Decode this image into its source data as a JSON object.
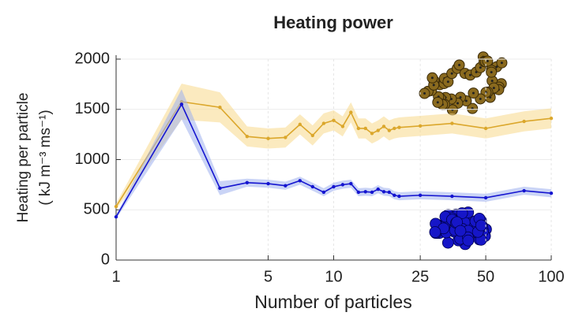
{
  "chart_data": {
    "type": "line",
    "title": "Heating power",
    "x_label": "Number of particles",
    "y_label": [
      "Heating per particle",
      "( kJ m⁻³ ms⁻¹)"
    ],
    "log_x": true,
    "grid": true,
    "x": [
      1,
      2,
      3,
      4,
      5,
      6,
      7,
      8,
      9,
      10,
      11,
      12,
      13,
      14,
      15,
      16,
      17,
      18,
      19,
      20,
      25,
      35,
      50,
      75,
      100
    ],
    "series": [
      {
        "color": "#dba72c",
        "band_color": "#f7d98a",
        "values": [
          533,
          1576,
          1520,
          1230,
          1210,
          1220,
          1350,
          1240,
          1360,
          1390,
          1330,
          1470,
          1310,
          1310,
          1260,
          1290,
          1330,
          1290,
          1310,
          1320,
          1335,
          1360,
          1310,
          1380,
          1410
        ],
        "error": [
          30,
          180,
          150,
          100,
          100,
          100,
          100,
          100,
          100,
          100,
          100,
          100,
          100,
          100,
          100,
          100,
          100,
          100,
          100,
          100,
          100,
          100,
          100,
          100,
          100
        ]
      },
      {
        "color": "#1515d0",
        "band_color": "#9fb0ee",
        "values": [
          430,
          1550,
          715,
          770,
          760,
          740,
          790,
          730,
          675,
          730,
          750,
          760,
          675,
          680,
          675,
          705,
          680,
          675,
          645,
          635,
          645,
          635,
          620,
          690,
          665
        ],
        "error": [
          20,
          150,
          70,
          40,
          40,
          40,
          40,
          40,
          40,
          40,
          40,
          40,
          40,
          40,
          40,
          40,
          40,
          40,
          40,
          40,
          40,
          40,
          40,
          40,
          40
        ]
      }
    ],
    "xlim": [
      1,
      100
    ],
    "xticks": [
      1,
      5,
      10,
      25,
      50,
      100
    ],
    "ylim": [
      0,
      2000
    ],
    "yticks": [
      0,
      500,
      1000,
      1500,
      2000
    ]
  }
}
